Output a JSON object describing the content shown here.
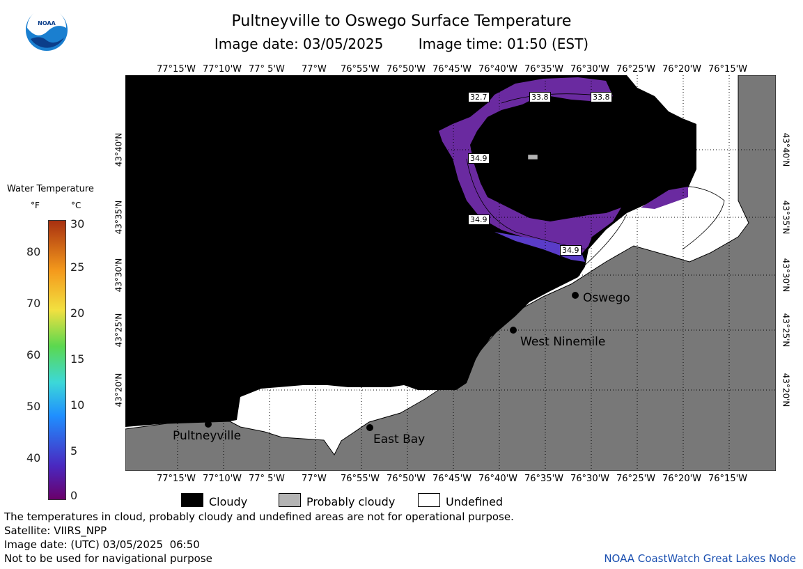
{
  "header": {
    "title": "Pultneyville to Oswego Surface Temperature",
    "image_date": "Image date: 03/05/2025",
    "image_time": "Image time: 01:50 (EST)",
    "logo_text": "NOAA"
  },
  "map": {
    "lon_labels": [
      "77°15'W",
      "77°10'W",
      "77° 5'W",
      "77°W",
      "76°55'W",
      "76°50'W",
      "76°45'W",
      "76°40'W",
      "76°35'W",
      "76°30'W",
      "76°25'W",
      "76°20'W",
      "76°15'W"
    ],
    "lat_labels": [
      "43°40'N",
      "43°35'N",
      "43°30'N",
      "43°25'N",
      "43°20'N"
    ],
    "cities": [
      {
        "name": "Pultneyville"
      },
      {
        "name": "East Bay"
      },
      {
        "name": "West Ninemile"
      },
      {
        "name": "Oswego"
      }
    ],
    "temperature_labels": [
      "32.7",
      "33.8",
      "33.8",
      "34.9",
      "34.9",
      "34.9"
    ],
    "colors": {
      "cloudy": "#000000",
      "land": "#787878",
      "undefined": "#ffffff",
      "probably_cloudy": "#b4b4b4",
      "water_purple": "#6a2aa0",
      "water_blue": "#5a3cc8"
    }
  },
  "color_scale": {
    "title": "Water Temperature",
    "unit_f": "°F",
    "unit_c": "°C",
    "f_ticks": [
      "80",
      "70",
      "60",
      "50",
      "40"
    ],
    "c_ticks": [
      "30",
      "25",
      "20",
      "15",
      "10",
      "5",
      "0"
    ]
  },
  "legend": {
    "cloudy": "Cloudy",
    "probably_cloudy": "Probably cloudy",
    "undefined": "Undefined"
  },
  "footer": {
    "line1": "The temperatures in cloud, probably cloudy and undefined areas are not for operational purpose.",
    "line2": "Satellite: VIIRS_NPP",
    "line3": "Image date: (UTC) 03/05/2025  06:50",
    "line4": "Not to be used for navigational purpose",
    "credit": "NOAA CoastWatch Great Lakes Node"
  }
}
